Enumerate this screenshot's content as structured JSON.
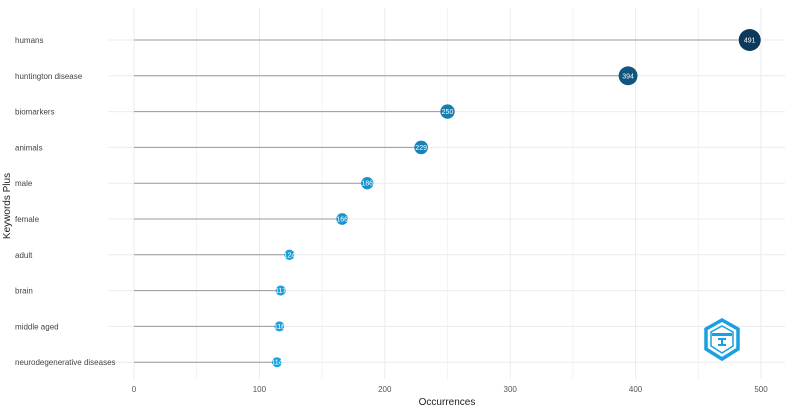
{
  "chart_data": {
    "type": "lollipop",
    "categories": [
      "humans",
      "huntington disease",
      "biomarkers",
      "animals",
      "male",
      "female",
      "adult",
      "brain",
      "middle aged",
      "neurodegenerative diseases"
    ],
    "values": [
      491,
      394,
      250,
      229,
      186,
      166,
      124,
      117,
      116,
      114
    ],
    "value_labels": [
      "491",
      "394",
      "250",
      "229",
      "186",
      "166",
      "124",
      "117",
      "116",
      "114"
    ],
    "xlabel": "Occurrences",
    "ylabel": "Keywords Plus",
    "xlim": [
      0,
      500
    ],
    "x_ticks": [
      0,
      100,
      200,
      300,
      400,
      500
    ],
    "x_tick_labels": [
      "0",
      "100",
      "200",
      "300",
      "400",
      "500"
    ],
    "grid": true,
    "color_low": "#1aa3e0",
    "color_high": "#0b3a5c",
    "stem_color": "#9a9a9a",
    "grid_color": "#ebebeb"
  },
  "logo": {
    "icon": "bibliometrix-logo-icon",
    "color": "#1a9fe0"
  }
}
